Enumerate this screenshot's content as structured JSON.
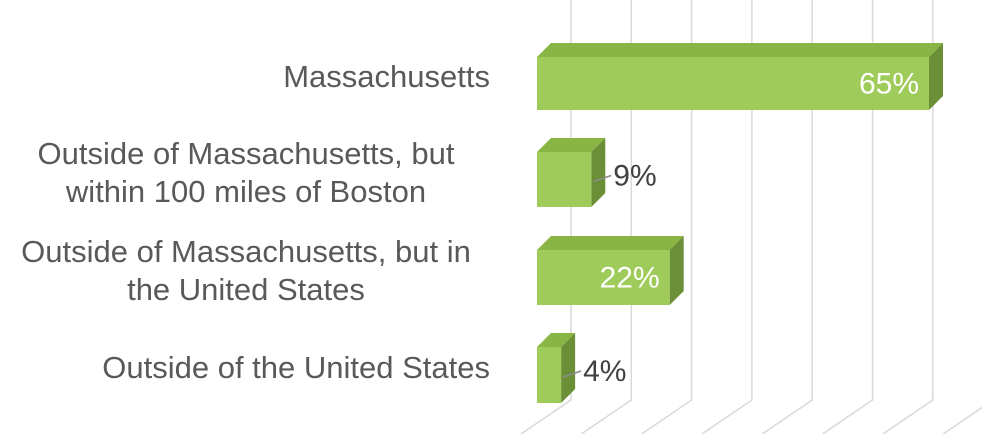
{
  "chart_data": {
    "type": "bar3d_horizontal",
    "categories": [
      "Massachusetts",
      "Outside of Massachusetts, but within 100 miles of Boston",
      "Outside of Massachusetts, but in the United States",
      "Outside of the United States"
    ],
    "values": [
      65,
      9,
      22,
      4
    ],
    "value_labels": [
      "65%",
      "9%",
      "22%",
      "4%"
    ],
    "color": "#9fcb5a",
    "xlim": [
      0,
      70
    ],
    "xticks": [
      0,
      10,
      20,
      30,
      40,
      50,
      60,
      70
    ],
    "grid": true
  }
}
